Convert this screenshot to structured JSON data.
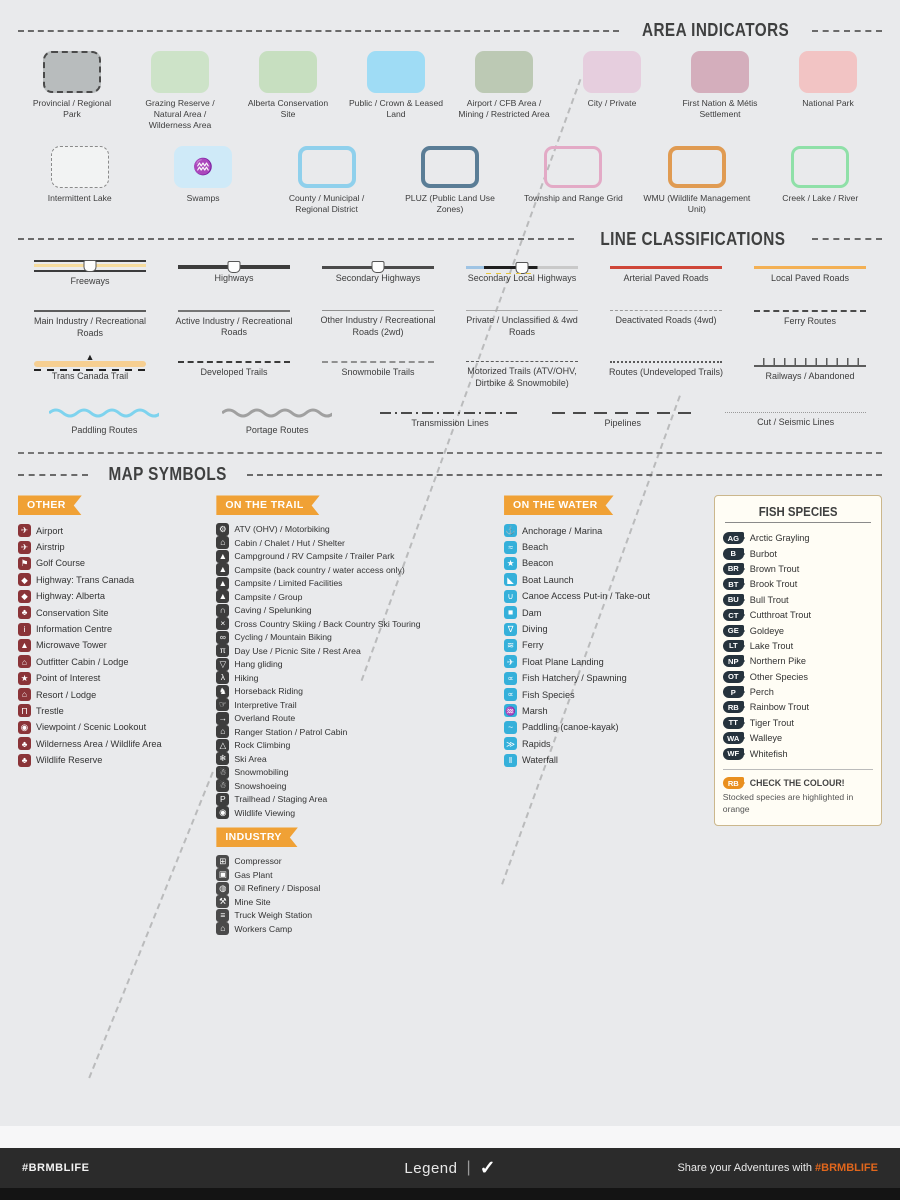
{
  "area": {
    "title": "AREA INDICATORS",
    "rows": [
      [
        {
          "label": "Provincial / Regional Park",
          "fill": "#b8bcbd",
          "border": "2px dashed #4a4a4a"
        },
        {
          "label": "Grazing Reserve / Natural Area / Wilderness Area",
          "fill": "#cde3c8"
        },
        {
          "label": "Alberta Conservation Site",
          "fill": "#c7dfc0"
        },
        {
          "label": "Public / Crown & Leased Land",
          "fill": "#9fdcf5"
        },
        {
          "label": "Airport / CFB Area / Mining / Restricted Area",
          "fill": "#bcc9b4"
        },
        {
          "label": "City / Private",
          "fill": "#e6cede"
        },
        {
          "label": "First Nation & Métis Settlement",
          "fill": "#d4aebc"
        },
        {
          "label": "National Park",
          "fill": "#f2c4c4"
        }
      ],
      [
        {
          "label": "Intermittent Lake",
          "fill": "#f2f3f3",
          "border": "1.5px dashed #8a8a8a"
        },
        {
          "label": "Swamps",
          "fill": "#cfeaf8",
          "glyph": "♒",
          "glyphColor": "#4aa3c8"
        },
        {
          "label": "County / Municipal / Regional District",
          "fill": "transparent",
          "border": "4px solid #8fd0ec"
        },
        {
          "label": "PLUZ (Public Land Use Zones)",
          "fill": "transparent",
          "border": "4px solid #5a7d96"
        },
        {
          "label": "Township and Range Grid",
          "fill": "transparent",
          "border": "3px solid #e3aac6"
        },
        {
          "label": "WMU (Wildlife Management Unit)",
          "fill": "transparent",
          "border": "4px solid #e09b52"
        },
        {
          "label": "Creek / Lake / River",
          "fill": "transparent",
          "border": "3px solid #8fe0a8"
        }
      ]
    ]
  },
  "lines": {
    "title": "LINE CLASSIFICATIONS",
    "rows": [
      [
        {
          "label": "Freeways",
          "style": "freeway"
        },
        {
          "label": "Highways",
          "style": "highway"
        },
        {
          "label": "Secondary Highways",
          "style": "sechwy"
        },
        {
          "label": "Secondary Local Highways",
          "style": "seclocal"
        },
        {
          "label": "Arterial Paved Roads",
          "style": "arterial"
        },
        {
          "label": "Local Paved Roads",
          "style": "localpaved"
        }
      ],
      [
        {
          "label": "Main Industry / Recreational Roads",
          "style": "mainind"
        },
        {
          "label": "Active Industry / Recreational Roads",
          "style": "activeind"
        },
        {
          "label": "Other Industry / Recreational Roads (2wd)",
          "style": "otherind"
        },
        {
          "label": "Private / Unclassified & 4wd Roads",
          "style": "private"
        },
        {
          "label": "Deactivated Roads (4wd)",
          "style": "deact"
        },
        {
          "label": "Ferry Routes",
          "style": "ferry"
        }
      ],
      [
        {
          "label": "Trans Canada Trail",
          "style": "tct"
        },
        {
          "label": "Developed Trails",
          "style": "devtrail"
        },
        {
          "label": "Snowmobile Trails",
          "style": "snowtrail"
        },
        {
          "label": "Motorized Trails (ATV/OHV, Dirtbike & Snowmobile)",
          "style": "motorized"
        },
        {
          "label": "Routes (Undeveloped Trails)",
          "style": "routes"
        },
        {
          "label": "Railways / Abandoned",
          "style": "railway"
        }
      ],
      [
        {
          "label": "Paddling Routes",
          "style": "paddling"
        },
        {
          "label": "Portage Routes",
          "style": "portage"
        },
        {
          "label": "Transmission Lines",
          "style": "transmission"
        },
        {
          "label": "Pipelines",
          "style": "pipeline"
        },
        {
          "label": "Cut / Seismic Lines",
          "style": "seismic"
        }
      ]
    ]
  },
  "map": {
    "title": "MAP SYMBOLS",
    "other": {
      "banner": "OTHER",
      "items": [
        {
          "glyph": "✈",
          "label": "Airport"
        },
        {
          "glyph": "✈",
          "label": "Airstrip"
        },
        {
          "glyph": "⚑",
          "label": "Golf Course"
        },
        {
          "glyph": "◆",
          "label": "Highway: Trans Canada"
        },
        {
          "glyph": "◆",
          "label": "Highway: Alberta"
        },
        {
          "glyph": "♣",
          "label": "Conservation Site"
        },
        {
          "glyph": "i",
          "label": "Information Centre"
        },
        {
          "glyph": "▲",
          "label": "Microwave Tower"
        },
        {
          "glyph": "⌂",
          "label": "Outfitter Cabin / Lodge"
        },
        {
          "glyph": "★",
          "label": "Point of Interest"
        },
        {
          "glyph": "⌂",
          "label": "Resort / Lodge"
        },
        {
          "glyph": "Π",
          "label": "Trestle"
        },
        {
          "glyph": "◉",
          "label": "Viewpoint / Scenic Lookout"
        },
        {
          "glyph": "♣",
          "label": "Wilderness Area / Wildlife Area"
        },
        {
          "glyph": "♣",
          "label": "Wildlife Reserve"
        }
      ]
    },
    "trail": {
      "banner": "ON THE TRAIL",
      "items": [
        {
          "glyph": "⚙",
          "label": "ATV (OHV) / Motorbiking"
        },
        {
          "glyph": "⌂",
          "label": "Cabin / Chalet / Hut / Shelter"
        },
        {
          "glyph": "▲",
          "label": "Campground / RV Campsite / Trailer Park"
        },
        {
          "glyph": "▲",
          "label": "Campsite (back country / water access only)"
        },
        {
          "glyph": "▲",
          "label": "Campsite / Limited Facilities"
        },
        {
          "glyph": "▲",
          "label": "Campsite / Group"
        },
        {
          "glyph": "∩",
          "label": "Caving / Spelunking"
        },
        {
          "glyph": "×",
          "label": "Cross Country Skiing / Back Country Ski Touring"
        },
        {
          "glyph": "∞",
          "label": "Cycling / Mountain Biking"
        },
        {
          "glyph": "π",
          "label": "Day Use / Picnic Site / Rest Area"
        },
        {
          "glyph": "▽",
          "label": "Hang gliding"
        },
        {
          "glyph": "λ",
          "label": "Hiking"
        },
        {
          "glyph": "♞",
          "label": "Horseback Riding"
        },
        {
          "glyph": "☞",
          "label": "Interpretive Trail"
        },
        {
          "glyph": "→",
          "label": "Overland Route"
        },
        {
          "glyph": "⌂",
          "label": "Ranger Station / Patrol Cabin"
        },
        {
          "glyph": "△",
          "label": "Rock Climbing"
        },
        {
          "glyph": "❄",
          "label": "Ski Area"
        },
        {
          "glyph": "☃",
          "label": "Snowmobiling"
        },
        {
          "glyph": "☃",
          "label": "Snowshoeing"
        },
        {
          "glyph": "P",
          "label": "Trailhead / Staging Area"
        },
        {
          "glyph": "◉",
          "label": "Wildlife Viewing"
        }
      ],
      "industry": {
        "banner": "INDUSTRY",
        "items": [
          {
            "glyph": "⊞",
            "label": "Compressor"
          },
          {
            "glyph": "▣",
            "label": "Gas Plant"
          },
          {
            "glyph": "◍",
            "label": "Oil Refinery / Disposal"
          },
          {
            "glyph": "⚒",
            "label": "Mine Site"
          },
          {
            "glyph": "≡",
            "label": "Truck Weigh Station"
          },
          {
            "glyph": "⌂",
            "label": "Workers Camp"
          }
        ]
      }
    },
    "water": {
      "banner": "ON THE WATER",
      "items": [
        {
          "glyph": "⚓",
          "label": "Anchorage / Marina"
        },
        {
          "glyph": "≈",
          "label": "Beach"
        },
        {
          "glyph": "★",
          "label": "Beacon"
        },
        {
          "glyph": "◣",
          "label": "Boat Launch"
        },
        {
          "glyph": "∪",
          "label": "Canoe Access Put-in / Take-out"
        },
        {
          "glyph": "■",
          "label": "Dam"
        },
        {
          "glyph": "∇",
          "label": "Diving"
        },
        {
          "glyph": "≋",
          "label": "Ferry"
        },
        {
          "glyph": "✈",
          "label": "Float Plane Landing"
        },
        {
          "glyph": "∝",
          "label": "Fish Hatchery / Spawning"
        },
        {
          "glyph": "∝",
          "label": "Fish Species"
        },
        {
          "glyph": "♒",
          "label": "Marsh"
        },
        {
          "glyph": "~",
          "label": "Paddling (canoe-kayak)"
        },
        {
          "glyph": "≫",
          "label": "Rapids"
        },
        {
          "glyph": "‖",
          "label": "Waterfall"
        }
      ]
    },
    "fish": {
      "title": "FISH SPECIES",
      "items": [
        {
          "code": "AG",
          "label": "Arctic Grayling"
        },
        {
          "code": "B",
          "label": "Burbot"
        },
        {
          "code": "BR",
          "label": "Brown Trout"
        },
        {
          "code": "BT",
          "label": "Brook Trout"
        },
        {
          "code": "BU",
          "label": "Bull Trout"
        },
        {
          "code": "CT",
          "label": "Cutthroat Trout"
        },
        {
          "code": "GE",
          "label": "Goldeye"
        },
        {
          "code": "LT",
          "label": "Lake Trout"
        },
        {
          "code": "NP",
          "label": "Northern Pike"
        },
        {
          "code": "OT",
          "label": "Other Species"
        },
        {
          "code": "P",
          "label": "Perch"
        },
        {
          "code": "RB",
          "label": "Rainbow Trout"
        },
        {
          "code": "TT",
          "label": "Tiger Trout"
        },
        {
          "code": "WA",
          "label": "Walleye"
        },
        {
          "code": "WF",
          "label": "Whitefish"
        }
      ],
      "note": {
        "badge": "RB",
        "title": "CHECK THE COLOUR!",
        "text": "Stocked species are highlighted in orange"
      }
    }
  },
  "footer": {
    "hashtag": "#BRMBLIFE",
    "legend": "Legend",
    "divider": "|",
    "logo_glyph": "✓",
    "share_prefix": "Share your Adventures with ",
    "share_tag": "#BRMBLIFE"
  },
  "colors": {
    "ribbon_orange": "#f0a135",
    "chip_other": "#8a3438",
    "chip_trail": "#3d3d3d",
    "chip_water": "#35b0da",
    "fish_badge": "#26333d",
    "stocked_orange": "#e98f1f",
    "footer_bg": "#2b2b2b",
    "page_bg": "#e9eaec"
  }
}
